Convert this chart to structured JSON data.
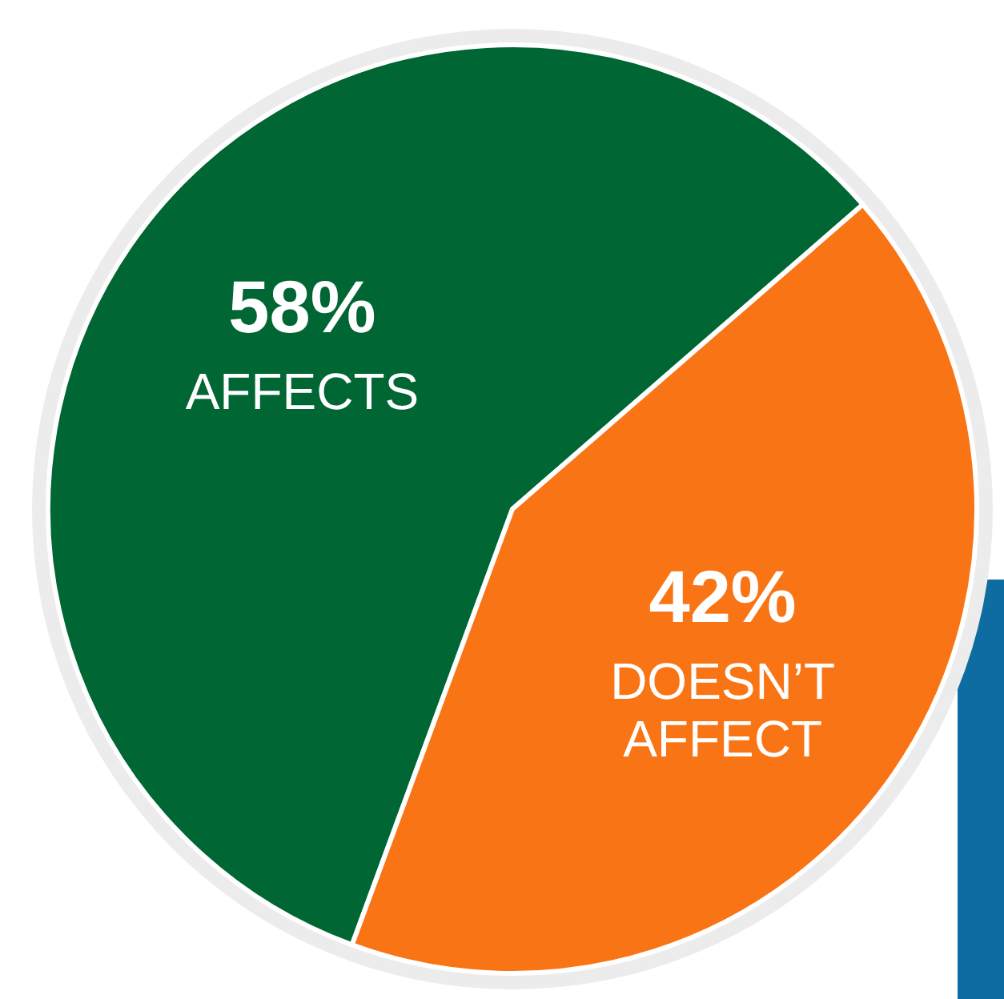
{
  "chart_data": {
    "type": "pie",
    "categories": [
      "AFFECTS",
      "DOESN’T AFFECT"
    ],
    "values": [
      58,
      42
    ],
    "colors": [
      "#006633",
      "#f97415"
    ],
    "value_labels": [
      "58%",
      "42%"
    ]
  }
}
